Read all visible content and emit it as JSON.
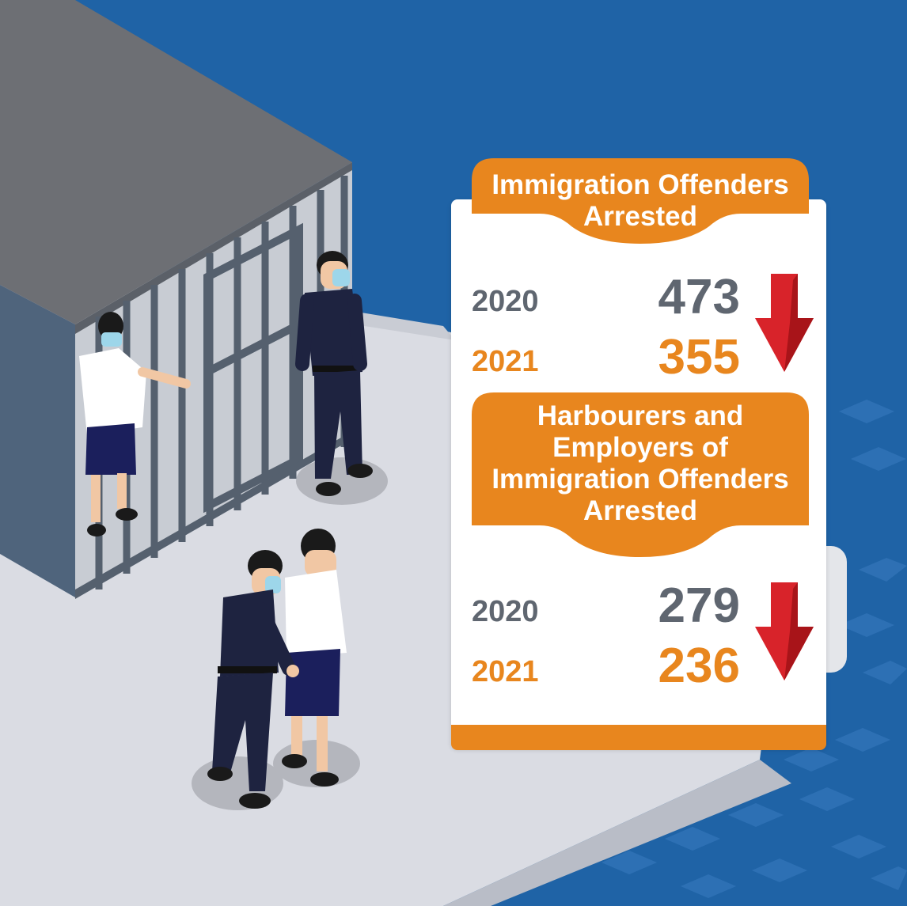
{
  "colors": {
    "background_blue": "#1f63a6",
    "accent_orange": "#e8861e",
    "arrow_red": "#d8232a",
    "value_grey": "#5f6670",
    "uniform_navy": "#1e2340"
  },
  "sections": [
    {
      "title": "Immigration Offenders Arrested",
      "rows": [
        {
          "year": "2020",
          "value": "473"
        },
        {
          "year": "2021",
          "value": "355"
        }
      ],
      "trend_icon": "down-arrow-icon"
    },
    {
      "title": "Harbourers and Employers of Immigration Offenders Arrested",
      "rows": [
        {
          "year": "2020",
          "value": "279"
        },
        {
          "year": "2021",
          "value": "236"
        }
      ],
      "trend_icon": "down-arrow-icon"
    }
  ]
}
